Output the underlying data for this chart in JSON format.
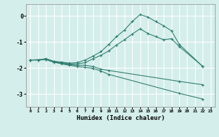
{
  "xlabel": "Humidex (Indice chaleur)",
  "ylabel": "",
  "xlim": [
    -0.5,
    23.5
  ],
  "ylim": [
    -3.5,
    0.45
  ],
  "yticks": [
    0,
    -1,
    -2,
    -3
  ],
  "xtick_values": [
    0,
    1,
    2,
    3,
    4,
    5,
    6,
    7,
    8,
    9,
    10,
    11,
    12,
    13,
    14,
    15,
    16,
    17,
    18,
    19,
    20,
    21,
    22,
    23
  ],
  "bg_color": "#d4eeeb",
  "grid_color": "#ffffff",
  "line_color": "#2e7d6e",
  "line1_x": [
    0,
    1,
    2,
    3,
    4,
    5,
    6,
    7,
    8,
    9,
    10,
    11,
    12,
    13,
    14,
    15,
    16,
    17,
    18,
    19,
    22
  ],
  "line1_y": [
    -1.7,
    -1.7,
    -1.65,
    -1.75,
    -1.78,
    -1.82,
    -1.8,
    -1.7,
    -1.55,
    -1.38,
    -1.1,
    -0.8,
    -0.55,
    -0.22,
    0.05,
    -0.05,
    -0.22,
    -0.38,
    -0.58,
    -1.1,
    -1.95
  ],
  "line2_x": [
    0,
    1,
    2,
    3,
    4,
    5,
    6,
    7,
    8,
    9,
    10,
    11,
    12,
    13,
    14,
    15,
    16,
    17,
    18,
    19,
    22
  ],
  "line2_y": [
    -1.7,
    -1.7,
    -1.65,
    -1.75,
    -1.8,
    -1.85,
    -1.85,
    -1.8,
    -1.65,
    -1.52,
    -1.35,
    -1.12,
    -0.92,
    -0.7,
    -0.5,
    -0.68,
    -0.8,
    -0.92,
    -0.88,
    -1.18,
    -1.95
  ],
  "line3_x": [
    0,
    2,
    3,
    4,
    5,
    6,
    7,
    8,
    9,
    10,
    19,
    22
  ],
  "line3_y": [
    -1.7,
    -1.68,
    -1.78,
    -1.82,
    -1.88,
    -1.9,
    -1.9,
    -1.95,
    -2.05,
    -2.1,
    -2.52,
    -2.65
  ],
  "line4_x": [
    0,
    2,
    3,
    4,
    5,
    6,
    7,
    8,
    9,
    10,
    19,
    22
  ],
  "line4_y": [
    -1.7,
    -1.68,
    -1.78,
    -1.85,
    -1.9,
    -1.95,
    -1.98,
    -2.02,
    -2.12,
    -2.25,
    -2.98,
    -3.2
  ]
}
